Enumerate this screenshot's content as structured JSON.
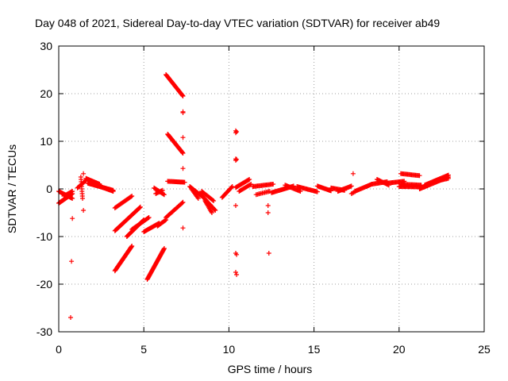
{
  "chart_data": {
    "type": "scatter",
    "title": "Day 048 of 2021, Sidereal Day-to-day VTEC variation (SDTVAR) for receiver ab49",
    "xlabel": "GPS time / hours",
    "ylabel": "SDTVAR / TECUs",
    "xlim": [
      0,
      25
    ],
    "ylim": [
      -30,
      30
    ],
    "xticks": [
      0,
      5,
      10,
      15,
      20,
      25
    ],
    "yticks": [
      -30,
      -20,
      -10,
      0,
      10,
      20,
      30
    ],
    "grid": true,
    "marker": "+",
    "color": "#ff0000",
    "segments": [
      {
        "x0": 0.0,
        "y0": -3.0,
        "x1": 0.8,
        "y1": -1.0,
        "n": 30
      },
      {
        "x0": 0.0,
        "y0": -0.5,
        "x1": 0.8,
        "y1": -2.0,
        "n": 20
      },
      {
        "x0": 0.3,
        "y0": -1.5,
        "x1": 0.8,
        "y1": -0.5,
        "n": 12
      },
      {
        "x0": 1.1,
        "y0": 0.2,
        "x1": 1.6,
        "y1": 1.8,
        "n": 14
      },
      {
        "x0": 1.3,
        "y0": 2.5,
        "x1": 1.4,
        "y1": -2.0,
        "n": 10
      },
      {
        "x0": 1.6,
        "y0": 2.2,
        "x1": 2.4,
        "y1": 1.0,
        "n": 22
      },
      {
        "x0": 1.7,
        "y0": 1.2,
        "x1": 3.2,
        "y1": -0.3,
        "n": 40
      },
      {
        "x0": 2.2,
        "y0": 0.8,
        "x1": 3.2,
        "y1": -0.5,
        "n": 20
      },
      {
        "x0": 3.3,
        "y0": -17.2,
        "x1": 4.3,
        "y1": -12.0,
        "n": 40
      },
      {
        "x0": 3.3,
        "y0": -8.8,
        "x1": 4.8,
        "y1": -3.8,
        "n": 45
      },
      {
        "x0": 3.3,
        "y0": -4.0,
        "x1": 4.3,
        "y1": -1.5,
        "n": 22
      },
      {
        "x0": 4.0,
        "y0": -10.0,
        "x1": 5.0,
        "y1": -6.5,
        "n": 32
      },
      {
        "x0": 4.3,
        "y0": -8.5,
        "x1": 5.3,
        "y1": -6.0,
        "n": 22
      },
      {
        "x0": 5.0,
        "y0": -9.0,
        "x1": 5.9,
        "y1": -7.2,
        "n": 22
      },
      {
        "x0": 5.2,
        "y0": -19.0,
        "x1": 6.2,
        "y1": -12.5,
        "n": 40
      },
      {
        "x0": 5.8,
        "y0": -7.8,
        "x1": 6.3,
        "y1": -6.5,
        "n": 12
      },
      {
        "x0": 5.6,
        "y0": 0.2,
        "x1": 6.2,
        "y1": -1.2,
        "n": 14
      },
      {
        "x0": 5.7,
        "y0": -1.0,
        "x1": 6.1,
        "y1": -0.3,
        "n": 8
      },
      {
        "x0": 6.3,
        "y0": -6.0,
        "x1": 7.3,
        "y1": -2.8,
        "n": 26
      },
      {
        "x0": 6.3,
        "y0": 24.0,
        "x1": 7.3,
        "y1": 19.5,
        "n": 40
      },
      {
        "x0": 6.4,
        "y0": 11.5,
        "x1": 7.3,
        "y1": 7.5,
        "n": 38
      },
      {
        "x0": 6.4,
        "y0": 1.6,
        "x1": 7.4,
        "y1": 1.4,
        "n": 22
      },
      {
        "x0": 7.7,
        "y0": 0.5,
        "x1": 8.4,
        "y1": -1.5,
        "n": 18
      },
      {
        "x0": 7.8,
        "y0": 0.0,
        "x1": 8.2,
        "y1": -2.0,
        "n": 10
      },
      {
        "x0": 8.3,
        "y0": -1.0,
        "x1": 9.2,
        "y1": -4.5,
        "n": 26
      },
      {
        "x0": 8.4,
        "y0": -0.5,
        "x1": 9.1,
        "y1": -2.5,
        "n": 14
      },
      {
        "x0": 8.6,
        "y0": -2.5,
        "x1": 9.0,
        "y1": -5.0,
        "n": 12
      },
      {
        "x0": 9.6,
        "y0": -1.8,
        "x1": 10.2,
        "y1": 0.5,
        "n": 16
      },
      {
        "x0": 10.4,
        "y0": 0.3,
        "x1": 11.2,
        "y1": 2.0,
        "n": 18
      },
      {
        "x0": 10.6,
        "y0": -0.5,
        "x1": 11.3,
        "y1": 1.0,
        "n": 14
      },
      {
        "x0": 11.4,
        "y0": 0.5,
        "x1": 12.6,
        "y1": 1.0,
        "n": 22
      },
      {
        "x0": 11.6,
        "y0": -1.2,
        "x1": 12.4,
        "y1": -0.5,
        "n": 12
      },
      {
        "x0": 12.5,
        "y0": -0.8,
        "x1": 13.8,
        "y1": 0.6,
        "n": 28
      },
      {
        "x0": 13.3,
        "y0": 0.8,
        "x1": 14.2,
        "y1": -0.5,
        "n": 18
      },
      {
        "x0": 14.0,
        "y0": 0.5,
        "x1": 15.2,
        "y1": -0.6,
        "n": 24
      },
      {
        "x0": 15.2,
        "y0": 0.6,
        "x1": 16.0,
        "y1": -0.4,
        "n": 18
      },
      {
        "x0": 16.0,
        "y0": 0.2,
        "x1": 16.8,
        "y1": -0.3,
        "n": 16
      },
      {
        "x0": 16.4,
        "y0": -0.5,
        "x1": 17.2,
        "y1": 0.6,
        "n": 18
      },
      {
        "x0": 17.2,
        "y0": -1.0,
        "x1": 17.4,
        "y1": -0.6,
        "n": 4
      },
      {
        "x0": 17.4,
        "y0": -0.5,
        "x1": 18.4,
        "y1": 1.0,
        "n": 22
      },
      {
        "x0": 18.4,
        "y0": 1.0,
        "x1": 19.3,
        "y1": 1.5,
        "n": 18
      },
      {
        "x0": 18.7,
        "y0": 2.0,
        "x1": 19.4,
        "y1": 0.8,
        "n": 14
      },
      {
        "x0": 19.3,
        "y0": 1.2,
        "x1": 20.3,
        "y1": 1.6,
        "n": 20
      },
      {
        "x0": 20.0,
        "y0": 0.5,
        "x1": 21.5,
        "y1": 0.4,
        "n": 30
      },
      {
        "x0": 20.1,
        "y0": 1.0,
        "x1": 21.3,
        "y1": 0.8,
        "n": 22
      },
      {
        "x0": 20.1,
        "y0": 3.2,
        "x1": 21.2,
        "y1": 2.8,
        "n": 20
      },
      {
        "x0": 21.2,
        "y0": 0.0,
        "x1": 22.9,
        "y1": 2.5,
        "n": 38
      },
      {
        "x0": 21.5,
        "y0": 0.8,
        "x1": 22.9,
        "y1": 2.9,
        "n": 30
      },
      {
        "x0": 22.0,
        "y0": 1.5,
        "x1": 22.9,
        "y1": 2.2,
        "n": 16
      }
    ],
    "points": [
      {
        "x": 0.7,
        "y": -27.0
      },
      {
        "x": 0.75,
        "y": -15.2
      },
      {
        "x": 0.8,
        "y": -6.2
      },
      {
        "x": 1.45,
        "y": 3.2
      },
      {
        "x": 1.45,
        "y": -4.5
      },
      {
        "x": 7.3,
        "y": 16.2
      },
      {
        "x": 7.3,
        "y": 16.0
      },
      {
        "x": 7.3,
        "y": 10.8
      },
      {
        "x": 7.3,
        "y": 4.3
      },
      {
        "x": 7.3,
        "y": -8.2
      },
      {
        "x": 10.4,
        "y": 12.2
      },
      {
        "x": 10.4,
        "y": 11.8
      },
      {
        "x": 10.45,
        "y": 12.0
      },
      {
        "x": 10.4,
        "y": 6.3
      },
      {
        "x": 10.4,
        "y": 6.0
      },
      {
        "x": 10.45,
        "y": 6.2
      },
      {
        "x": 10.4,
        "y": -3.5
      },
      {
        "x": 10.4,
        "y": -13.5
      },
      {
        "x": 10.45,
        "y": -13.8
      },
      {
        "x": 10.4,
        "y": -17.5
      },
      {
        "x": 10.45,
        "y": -18.0
      },
      {
        "x": 12.3,
        "y": -3.5
      },
      {
        "x": 12.3,
        "y": -5.0
      },
      {
        "x": 12.35,
        "y": -13.5
      },
      {
        "x": 17.3,
        "y": 3.2
      }
    ]
  }
}
